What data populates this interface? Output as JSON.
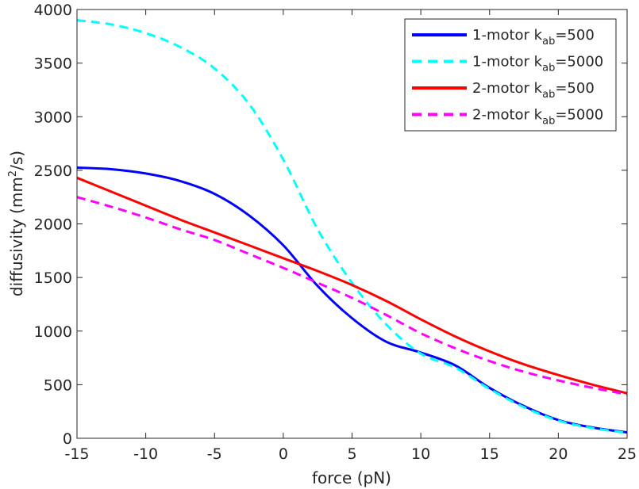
{
  "chart_data": {
    "type": "line",
    "xlabel": "force (pN)",
    "ylabel_main": "diffusivity (mm",
    "ylabel_sup": "2",
    "ylabel_tail": "/s)",
    "xlim": [
      -15,
      25
    ],
    "ylim": [
      0,
      4000
    ],
    "xticks": [
      -15,
      -10,
      -5,
      0,
      5,
      10,
      15,
      20,
      25
    ],
    "yticks": [
      0,
      500,
      1000,
      1500,
      2000,
      2500,
      3000,
      3500,
      4000
    ],
    "legend_position": "top-right",
    "grid": false,
    "series": [
      {
        "name_main": "1-motor k",
        "name_sub": "ab",
        "name_tail": "=500",
        "color": "#0000ff",
        "style": "solid",
        "points": [
          [
            -15,
            2525
          ],
          [
            -12.5,
            2510
          ],
          [
            -10,
            2470
          ],
          [
            -7.5,
            2400
          ],
          [
            -5,
            2280
          ],
          [
            -2.5,
            2080
          ],
          [
            0,
            1800
          ],
          [
            2.5,
            1420
          ],
          [
            5,
            1120
          ],
          [
            7.5,
            900
          ],
          [
            10,
            800
          ],
          [
            12.5,
            680
          ],
          [
            15,
            470
          ],
          [
            17.5,
            300
          ],
          [
            20,
            170
          ],
          [
            22.5,
            100
          ],
          [
            25,
            55
          ]
        ]
      },
      {
        "name_main": "1-motor k",
        "name_sub": "ab",
        "name_tail": "=5000",
        "color": "#00ffff",
        "style": "dashed",
        "points": [
          [
            -15,
            3900
          ],
          [
            -12.5,
            3860
          ],
          [
            -10,
            3780
          ],
          [
            -7.5,
            3650
          ],
          [
            -5,
            3450
          ],
          [
            -2.5,
            3120
          ],
          [
            0,
            2600
          ],
          [
            2.5,
            1950
          ],
          [
            5,
            1450
          ],
          [
            7.5,
            1060
          ],
          [
            10,
            790
          ],
          [
            12.5,
            660
          ],
          [
            15,
            460
          ],
          [
            17.5,
            290
          ],
          [
            20,
            165
          ],
          [
            22.5,
            95
          ],
          [
            25,
            50
          ]
        ]
      },
      {
        "name_main": "2-motor k",
        "name_sub": "ab",
        "name_tail": "=500",
        "color": "#ff0000",
        "style": "solid",
        "points": [
          [
            -15,
            2430
          ],
          [
            -12.5,
            2300
          ],
          [
            -10,
            2170
          ],
          [
            -7.5,
            2040
          ],
          [
            -5,
            1920
          ],
          [
            -2.5,
            1800
          ],
          [
            0,
            1680
          ],
          [
            2.5,
            1560
          ],
          [
            5,
            1430
          ],
          [
            7.5,
            1280
          ],
          [
            10,
            1110
          ],
          [
            12.5,
            950
          ],
          [
            15,
            810
          ],
          [
            17.5,
            690
          ],
          [
            20,
            590
          ],
          [
            22.5,
            500
          ],
          [
            25,
            420
          ]
        ]
      },
      {
        "name_main": "2-motor k",
        "name_sub": "ab",
        "name_tail": "=5000",
        "color": "#ff00ff",
        "style": "dashed",
        "points": [
          [
            -15,
            2250
          ],
          [
            -12.5,
            2160
          ],
          [
            -10,
            2060
          ],
          [
            -7.5,
            1950
          ],
          [
            -5,
            1850
          ],
          [
            -2.5,
            1720
          ],
          [
            0,
            1590
          ],
          [
            2.5,
            1450
          ],
          [
            5,
            1310
          ],
          [
            7.5,
            1150
          ],
          [
            10,
            980
          ],
          [
            12.5,
            840
          ],
          [
            15,
            720
          ],
          [
            17.5,
            620
          ],
          [
            20,
            540
          ],
          [
            22.5,
            470
          ],
          [
            25,
            410
          ]
        ]
      }
    ]
  }
}
